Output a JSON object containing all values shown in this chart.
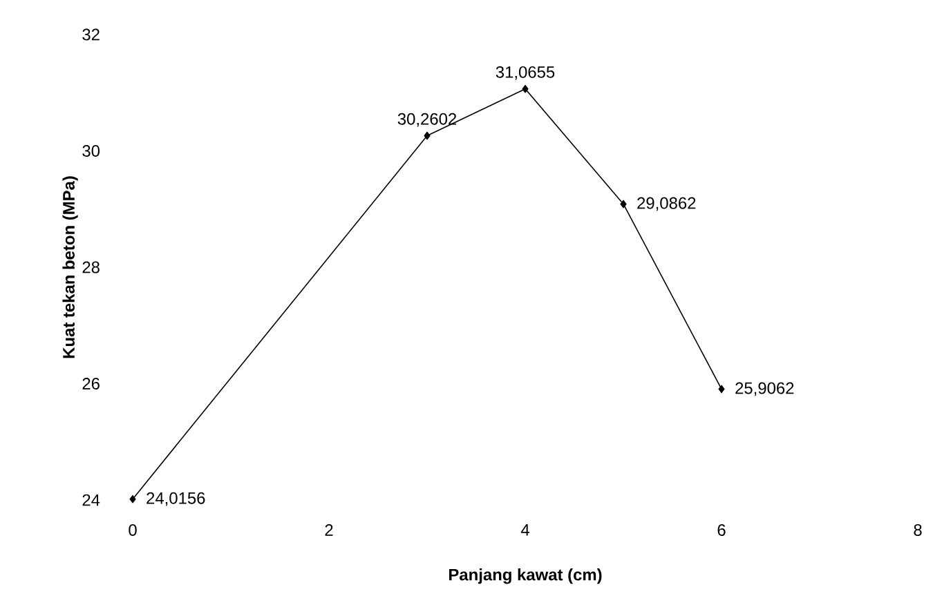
{
  "chart_data": {
    "type": "line",
    "xlabel": "Panjang kawat (cm)",
    "ylabel": "Kuat tekan beton (MPa)",
    "x": [
      0,
      3,
      4,
      5,
      6
    ],
    "series": [
      {
        "color": "#000000",
        "values": [
          24.0156,
          30.2602,
          31.0655,
          29.0862,
          25.9062
        ],
        "value_labels": [
          "24,0156",
          "30,2602",
          "31,0655",
          "29,0862",
          "25,9062"
        ]
      }
    ],
    "xlim": [
      0,
      8
    ],
    "xticks": [
      0,
      2,
      4,
      6,
      8
    ],
    "ylim": [
      24,
      32
    ],
    "yticks": [
      24,
      26,
      28,
      30,
      32
    ],
    "marker": "diamond",
    "grid": false
  }
}
